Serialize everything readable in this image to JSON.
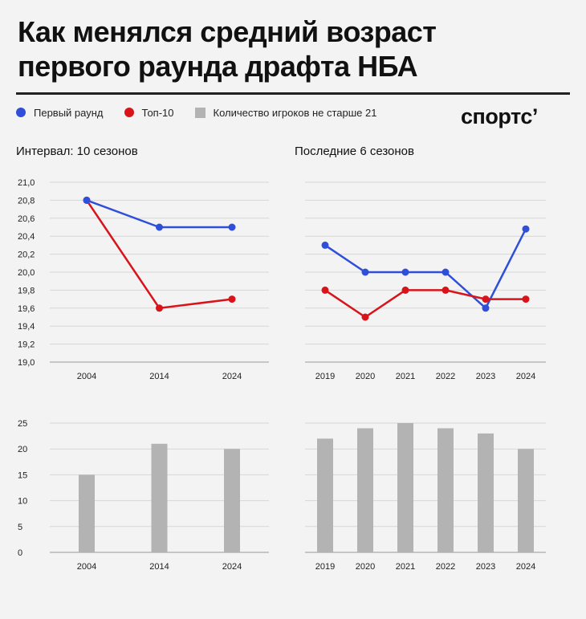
{
  "header": {
    "title_line1": "Как менялся средний возраст",
    "title_line2": "первого раунда драфта НБА",
    "logo": "спортс’"
  },
  "legend": {
    "items": [
      {
        "label": "Первый раунд",
        "color": "#2f4fd8",
        "shape": "circle"
      },
      {
        "label": "Топ-10",
        "color": "#d8141a",
        "shape": "circle"
      },
      {
        "label": "Количество игроков не старше 21",
        "color": "#b3b3b3",
        "shape": "square"
      }
    ]
  },
  "panels": {
    "left_title": "Интервал: 10 сезонов",
    "right_title": "Последние 6 сезонов"
  },
  "chart_data": [
    {
      "type": "line",
      "title": "Интервал: 10 сезонов",
      "categories": [
        "2004",
        "2014",
        "2024"
      ],
      "series": [
        {
          "name": "Первый раунд",
          "color": "#2f4fd8",
          "values": [
            20.8,
            20.5,
            20.5
          ]
        },
        {
          "name": "Топ-10",
          "color": "#d8141a",
          "values": [
            20.8,
            19.6,
            19.7
          ]
        }
      ],
      "ylim": [
        19.0,
        21.0
      ],
      "yticks": [
        "19,0",
        "19,2",
        "19,4",
        "19,6",
        "19,8",
        "20,0",
        "20,2",
        "20,4",
        "20,6",
        "20,8",
        "21,0"
      ],
      "grid": true
    },
    {
      "type": "line",
      "title": "Последние 6 сезонов",
      "categories": [
        "2019",
        "2020",
        "2021",
        "2022",
        "2023",
        "2024"
      ],
      "series": [
        {
          "name": "Первый раунд",
          "color": "#2f4fd8",
          "values": [
            20.3,
            20.0,
            20.0,
            20.0,
            19.6,
            20.48
          ]
        },
        {
          "name": "Топ-10",
          "color": "#d8141a",
          "values": [
            19.8,
            19.5,
            19.8,
            19.8,
            19.7,
            19.7
          ]
        }
      ],
      "ylim": [
        19.0,
        21.0
      ],
      "grid": true
    },
    {
      "type": "bar",
      "categories": [
        "2004",
        "2014",
        "2024"
      ],
      "series": [
        {
          "name": "Количество игроков не старше 21",
          "color": "#b3b3b3",
          "values": [
            15,
            21,
            20
          ]
        }
      ],
      "ylim": [
        0,
        25
      ],
      "yticks": [
        "0",
        "5",
        "10",
        "15",
        "20",
        "25"
      ],
      "grid": true
    },
    {
      "type": "bar",
      "categories": [
        "2019",
        "2020",
        "2021",
        "2022",
        "2023",
        "2024"
      ],
      "series": [
        {
          "name": "Количество игроков не старше 21",
          "color": "#b3b3b3",
          "values": [
            22,
            24,
            25,
            24,
            23,
            20
          ]
        }
      ],
      "ylim": [
        0,
        25
      ],
      "grid": true
    }
  ]
}
